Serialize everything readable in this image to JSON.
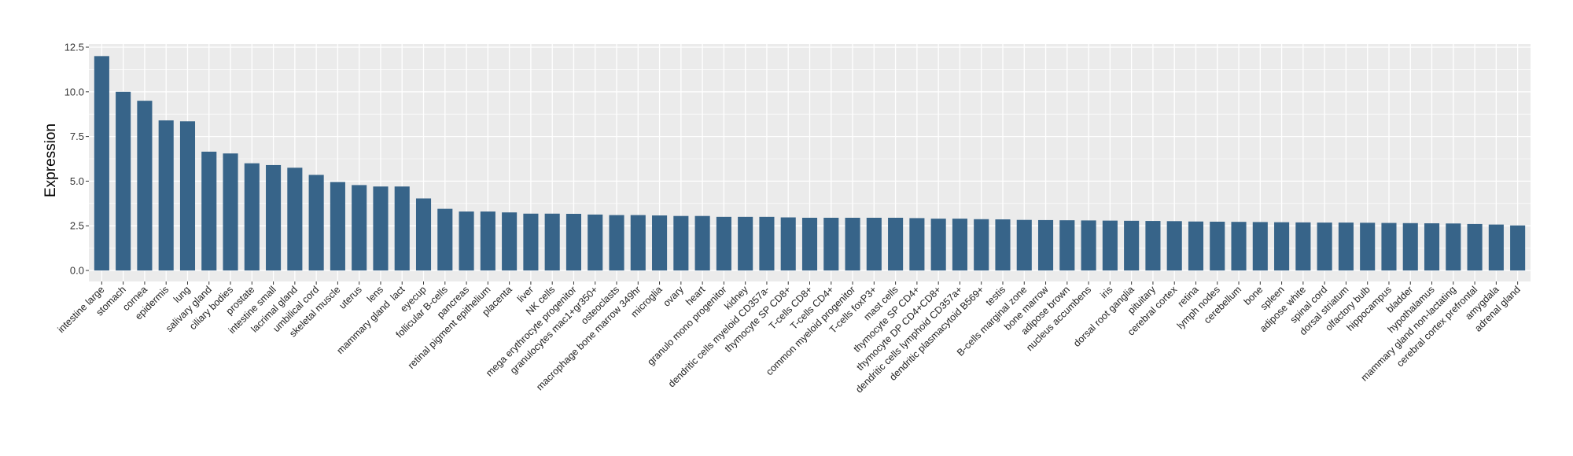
{
  "chart_data": {
    "type": "bar",
    "title": "",
    "xlabel": "",
    "ylabel": "Expression",
    "ylim": [
      -0.6,
      12.7
    ],
    "yticks": [
      "0.0",
      "2.5",
      "5.0",
      "7.5",
      "10.0",
      "12.5"
    ],
    "grid": true,
    "bar_color": "#376489",
    "panel_color": "#EBEBEB",
    "categories": [
      "intestine large",
      "stomach",
      "cornea",
      "epidermis",
      "lung",
      "salivary gland",
      "ciliary bodies",
      "prostate",
      "intestine small",
      "lacrimal gland",
      "umbilical cord",
      "skeletal muscle",
      "uterus",
      "lens",
      "mammary gland  lact",
      "eyecup",
      "follicular B-cells",
      "pancreas",
      "retinal pigment epithelium",
      "placenta",
      "liver",
      "NK cells",
      "mega erythrocyte progenitor",
      "granulocytes mac1+gr350+",
      "osteoclasts",
      "macrophage bone marrow 349hr",
      "microglia",
      "ovary",
      "heart",
      "granulo mono progenitor",
      "kidney",
      "dendritic cells myeloid CD357a-",
      "thymocyte SP CD8+",
      "T-cells CD8+",
      "T-cells CD4+",
      "common myeloid progenitor",
      "T-cells foxP3+",
      "mast cells",
      "thymocyte SP CD4+",
      "thymocyte DP CD4+CD8+",
      "dendritic cells lymphoid CD357a+",
      "dendritic plasmacytoid B569+",
      "testis",
      "B-cells marginal zone",
      "bone marrow",
      "adipose brown",
      "nucleus accumbens",
      "iris",
      "dorsal root ganglia",
      "pituitary",
      "cerebral cortex",
      "retina",
      "lymph nodes",
      "cerebellum",
      "bone",
      "spleen",
      "adipose white",
      "spinal cord",
      "dorsal striatum",
      "olfactory bulb",
      "hippocampus",
      "bladder",
      "hypothalamus",
      "mammary gland non-lactating",
      "cerebral cortex prefrontal",
      "amygdala",
      "adrenal gland"
    ],
    "values": [
      12.0,
      10.0,
      9.5,
      8.4,
      8.35,
      6.65,
      6.55,
      6.0,
      5.9,
      5.75,
      5.35,
      4.95,
      4.78,
      4.7,
      4.7,
      4.03,
      3.45,
      3.3,
      3.3,
      3.25,
      3.18,
      3.18,
      3.17,
      3.13,
      3.1,
      3.1,
      3.08,
      3.05,
      3.05,
      3.0,
      3.0,
      3.0,
      2.97,
      2.95,
      2.95,
      2.95,
      2.95,
      2.95,
      2.93,
      2.9,
      2.9,
      2.87,
      2.86,
      2.83,
      2.82,
      2.81,
      2.8,
      2.79,
      2.78,
      2.77,
      2.76,
      2.74,
      2.73,
      2.72,
      2.71,
      2.7,
      2.69,
      2.68,
      2.68,
      2.67,
      2.66,
      2.65,
      2.64,
      2.63,
      2.6,
      2.57,
      2.52
    ]
  }
}
